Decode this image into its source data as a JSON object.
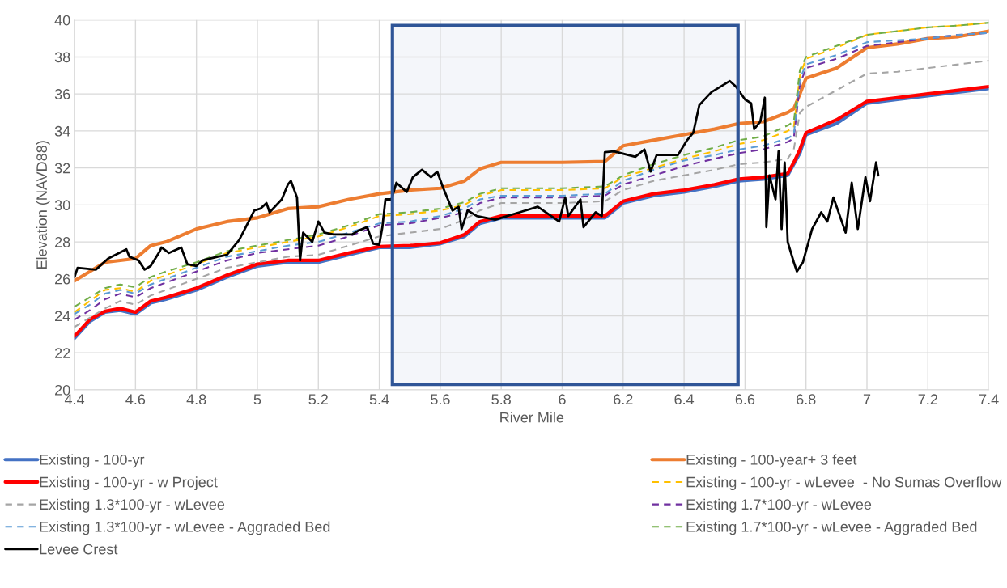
{
  "chart_data": {
    "type": "line",
    "xlabel": "River Mile",
    "ylabel": "Elevation (NAVD88)",
    "x": [
      4.4,
      4.45,
      4.5,
      4.55,
      4.6,
      4.65,
      4.7,
      4.8,
      4.9,
      5.0,
      5.1,
      5.2,
      5.3,
      5.4,
      5.5,
      5.6,
      5.68,
      5.73,
      5.8,
      6.0,
      6.14,
      6.2,
      6.3,
      6.4,
      6.5,
      6.58,
      6.66,
      6.74,
      6.76,
      6.78,
      6.8,
      6.9,
      7.0,
      7.1,
      7.2,
      7.3,
      7.4
    ],
    "series": [
      {
        "name": "Existing - 100-yr",
        "color": "#4472c4",
        "line_style": "solid",
        "values": [
          22.8,
          23.7,
          24.2,
          24.3,
          24.1,
          24.7,
          24.9,
          25.4,
          26.1,
          26.7,
          26.9,
          26.9,
          27.3,
          27.7,
          27.7,
          27.9,
          28.3,
          29.0,
          29.3,
          29.3,
          29.3,
          30.1,
          30.5,
          30.7,
          31.0,
          31.3,
          31.4,
          31.6,
          32.2,
          32.8,
          33.8,
          34.4,
          35.5,
          35.7,
          35.9,
          36.1,
          36.3
        ]
      },
      {
        "name": "Existing - 100-year+ 3 feet",
        "color": "#ed7d31",
        "line_style": "solid",
        "values": [
          25.9,
          26.4,
          26.9,
          27.0,
          27.1,
          27.8,
          28.0,
          28.7,
          29.1,
          29.3,
          29.8,
          29.9,
          30.3,
          30.6,
          30.8,
          30.9,
          31.3,
          31.95,
          32.3,
          32.3,
          32.35,
          33.2,
          33.5,
          33.8,
          34.1,
          34.4,
          34.5,
          35.0,
          35.2,
          36.0,
          36.85,
          37.4,
          38.5,
          38.7,
          39.0,
          39.1,
          39.4
        ]
      },
      {
        "name": "Existing - 100-yr - w Project",
        "color": "#ff0000",
        "line_style": "solid",
        "values": [
          22.9,
          23.8,
          24.25,
          24.4,
          24.2,
          24.8,
          25.0,
          25.5,
          26.2,
          26.8,
          27.0,
          27.0,
          27.4,
          27.75,
          27.8,
          27.95,
          28.4,
          29.1,
          29.4,
          29.4,
          29.4,
          30.2,
          30.6,
          30.8,
          31.1,
          31.4,
          31.5,
          31.7,
          32.3,
          33.0,
          33.9,
          34.6,
          35.6,
          35.8,
          36.0,
          36.2,
          36.4
        ]
      },
      {
        "name": "Existing - 100-yr - wLevee  - No Sumas Overflow",
        "color": "#ffc000",
        "line_style": "dashed",
        "values": [
          24.2,
          24.8,
          25.4,
          25.5,
          25.3,
          25.9,
          26.2,
          26.8,
          27.4,
          27.7,
          28.0,
          28.3,
          28.8,
          29.4,
          29.5,
          29.7,
          30.0,
          30.5,
          30.8,
          30.8,
          30.9,
          31.5,
          32.0,
          32.5,
          32.9,
          33.3,
          33.5,
          34.0,
          34.2,
          37.0,
          37.9,
          38.5,
          39.2,
          39.4,
          39.6,
          39.7,
          39.85
        ]
      },
      {
        "name": "Existing 1.3*100-yr - wLevee",
        "color": "#a5a5a5",
        "line_style": "dashed",
        "values": [
          23.4,
          23.9,
          24.4,
          24.8,
          24.6,
          25.1,
          25.4,
          26.0,
          26.6,
          26.9,
          27.2,
          27.3,
          27.8,
          28.3,
          28.5,
          28.7,
          29.2,
          29.7,
          30.1,
          30.1,
          30.2,
          30.8,
          31.3,
          31.6,
          31.9,
          32.2,
          32.3,
          32.5,
          33.0,
          35.0,
          35.3,
          36.2,
          37.1,
          37.2,
          37.4,
          37.6,
          37.8
        ]
      },
      {
        "name": "Existing 1.7*100-yr - wLevee",
        "color": "#7030a0",
        "line_style": "dashed",
        "values": [
          23.8,
          24.3,
          24.9,
          25.2,
          25.0,
          25.5,
          25.8,
          26.4,
          27.0,
          27.4,
          27.6,
          27.8,
          28.3,
          28.9,
          29.0,
          29.3,
          29.6,
          30.1,
          30.4,
          30.4,
          30.5,
          31.1,
          31.6,
          32.1,
          32.5,
          32.8,
          33.0,
          33.4,
          33.6,
          36.5,
          37.4,
          37.9,
          38.6,
          38.8,
          39.0,
          39.2,
          39.3
        ]
      },
      {
        "name": "Existing 1.3*100-yr - wLevee - Aggraded Bed",
        "color": "#5b9bd5",
        "line_style": "dashed",
        "values": [
          24.1,
          24.6,
          25.2,
          25.4,
          25.2,
          25.7,
          26.0,
          26.6,
          27.2,
          27.5,
          27.8,
          28.0,
          28.5,
          29.0,
          29.1,
          29.4,
          29.8,
          30.3,
          30.5,
          30.5,
          30.6,
          31.3,
          31.9,
          32.4,
          32.7,
          33.0,
          33.2,
          33.6,
          33.8,
          36.8,
          37.6,
          38.1,
          38.8,
          38.9,
          39.0,
          39.2,
          39.3
        ]
      },
      {
        "name": "Existing 1.7*100-yr - wLevee - Aggraded Bed",
        "color": "#70ad47",
        "line_style": "dashed",
        "values": [
          24.5,
          25.0,
          25.5,
          25.7,
          25.55,
          26.1,
          26.4,
          26.9,
          27.5,
          27.8,
          28.1,
          28.4,
          28.9,
          29.5,
          29.6,
          29.8,
          30.15,
          30.6,
          30.9,
          30.9,
          31.0,
          31.6,
          32.2,
          32.7,
          33.1,
          33.5,
          33.7,
          34.3,
          34.5,
          37.3,
          38.0,
          38.6,
          39.2,
          39.4,
          39.6,
          39.7,
          39.85
        ]
      },
      {
        "name": "Levee Crest",
        "color": "#000000",
        "line_style": "solid",
        "x": [
          4.4,
          4.41,
          4.47,
          4.51,
          4.57,
          4.58,
          4.61,
          4.63,
          4.65,
          4.68,
          4.685,
          4.71,
          4.75,
          4.77,
          4.8,
          4.82,
          4.87,
          4.9,
          4.94,
          4.99,
          5.01,
          5.03,
          5.04,
          5.08,
          5.1,
          5.11,
          5.13,
          5.14,
          5.15,
          5.18,
          5.2,
          5.22,
          5.25,
          5.31,
          5.33,
          5.36,
          5.38,
          5.4,
          5.41,
          5.42,
          5.44,
          5.456,
          5.49,
          5.51,
          5.54,
          5.57,
          5.59,
          5.61,
          5.64,
          5.66,
          5.67,
          5.69,
          5.72,
          5.78,
          5.86,
          5.92,
          5.99,
          6.01,
          6.02,
          6.06,
          6.07,
          6.11,
          6.13,
          6.14,
          6.17,
          6.24,
          6.27,
          6.29,
          6.31,
          6.38,
          6.41,
          6.43,
          6.45,
          6.49,
          6.55,
          6.57,
          6.6,
          6.62,
          6.63,
          6.65,
          6.665,
          6.67,
          6.68,
          6.7,
          6.71,
          6.72,
          6.73,
          6.74,
          6.76,
          6.77,
          6.79,
          6.82,
          6.85,
          6.87,
          6.89,
          6.93,
          6.95,
          6.97,
          6.995,
          7.01,
          7.03,
          7.037
        ],
        "values": [
          26.1,
          26.6,
          26.5,
          27.1,
          27.6,
          27.2,
          27.0,
          26.5,
          26.7,
          27.5,
          27.7,
          27.4,
          27.7,
          26.8,
          26.7,
          27.0,
          27.2,
          27.3,
          28.1,
          29.7,
          29.8,
          30.1,
          29.6,
          30.3,
          31.1,
          31.3,
          30.4,
          27.0,
          28.5,
          28.0,
          29.1,
          28.5,
          28.4,
          28.4,
          28.6,
          28.8,
          27.9,
          27.85,
          28.8,
          30.3,
          30.3,
          31.2,
          30.7,
          31.5,
          31.9,
          31.5,
          31.8,
          30.9,
          29.7,
          29.9,
          28.7,
          29.7,
          29.4,
          29.2,
          29.6,
          29.9,
          29.1,
          30.4,
          29.4,
          30.3,
          28.8,
          29.6,
          29.4,
          32.85,
          32.9,
          32.6,
          33.0,
          31.8,
          32.7,
          32.7,
          33.5,
          33.9,
          35.4,
          36.1,
          36.7,
          36.4,
          35.7,
          35.5,
          34.1,
          34.5,
          35.8,
          28.8,
          31.6,
          30.3,
          32.9,
          28.7,
          32.3,
          28.0,
          26.9,
          26.4,
          26.9,
          28.7,
          29.6,
          29.1,
          30.4,
          28.5,
          31.2,
          28.7,
          31.5,
          30.2,
          32.3,
          31.6
        ]
      }
    ],
    "bands": [
      {
        "axis": "x",
        "from": 5.443,
        "to": 6.577,
        "color": "#2f5597"
      }
    ],
    "xlim": [
      4.4,
      7.4
    ],
    "xticks": [
      4.4,
      4.6,
      4.8,
      5,
      5.2,
      5.4,
      5.6,
      5.8,
      6,
      6.2,
      6.4,
      6.6,
      6.8,
      7,
      7.2,
      7.4
    ],
    "ylim": [
      20,
      40
    ],
    "yticks": [
      20,
      22,
      24,
      26,
      28,
      30,
      32,
      34,
      36,
      38,
      40
    ],
    "grid": true,
    "legend": "bottom"
  }
}
